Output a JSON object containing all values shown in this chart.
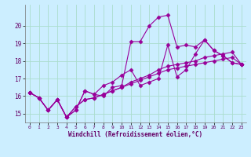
{
  "background_color": "#cceeff",
  "grid_color": "#aaddcc",
  "line_color": "#990099",
  "marker": "D",
  "markersize": 2.5,
  "linewidth": 0.8,
  "xlim": [
    -0.5,
    23.5
  ],
  "ylim": [
    14.5,
    21.2
  ],
  "yticks": [
    15,
    16,
    17,
    18,
    19,
    20
  ],
  "xticks": [
    0,
    1,
    2,
    3,
    4,
    5,
    6,
    7,
    8,
    9,
    10,
    11,
    12,
    13,
    14,
    15,
    16,
    17,
    18,
    19,
    20,
    21,
    22,
    23
  ],
  "xlabel": "Windchill (Refroidissement éolien,°C)",
  "series": [
    [
      16.2,
      15.9,
      15.2,
      15.8,
      14.8,
      15.2,
      16.3,
      16.1,
      16.0,
      16.5,
      16.6,
      19.1,
      19.1,
      20.0,
      20.5,
      20.6,
      18.8,
      18.9,
      18.8,
      19.2,
      18.6,
      18.3,
      17.9,
      17.8
    ],
    [
      16.2,
      15.9,
      15.2,
      15.8,
      14.8,
      15.2,
      16.3,
      16.1,
      16.6,
      16.8,
      17.2,
      17.5,
      16.6,
      16.8,
      17.0,
      18.9,
      17.1,
      17.5,
      18.4,
      19.2,
      18.6,
      18.3,
      17.9,
      17.8
    ],
    [
      16.2,
      15.9,
      15.2,
      15.8,
      14.8,
      15.4,
      15.8,
      15.9,
      16.1,
      16.3,
      16.5,
      16.8,
      17.0,
      17.2,
      17.5,
      17.7,
      17.8,
      17.9,
      18.0,
      18.2,
      18.3,
      18.4,
      18.5,
      17.8
    ],
    [
      16.2,
      15.9,
      15.2,
      15.8,
      14.8,
      15.4,
      15.8,
      15.9,
      16.1,
      16.3,
      16.5,
      16.7,
      16.9,
      17.1,
      17.3,
      17.5,
      17.6,
      17.7,
      17.8,
      17.9,
      18.0,
      18.1,
      18.2,
      17.8
    ]
  ]
}
